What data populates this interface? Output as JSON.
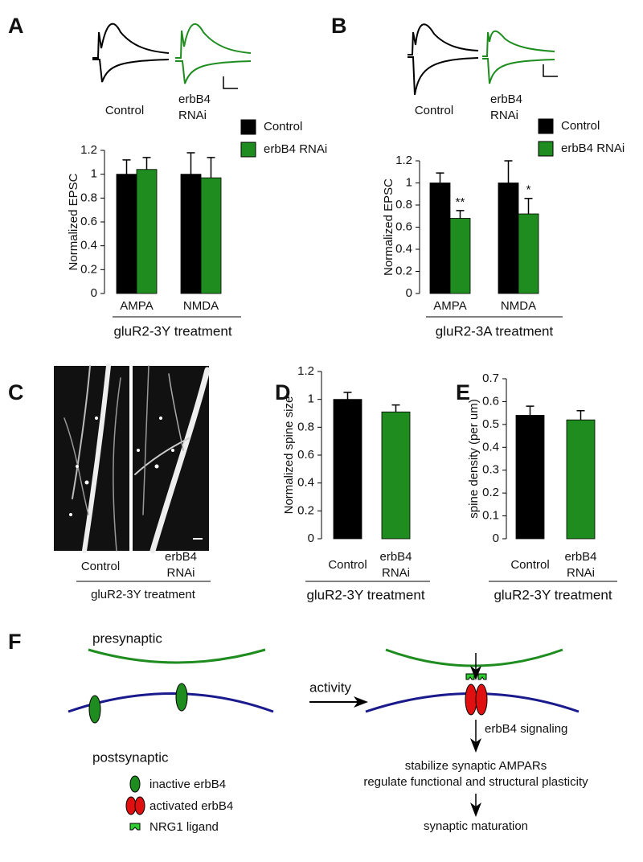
{
  "panel_labels": [
    "A",
    "B",
    "C",
    "D",
    "E",
    "F"
  ],
  "traces": [
    {
      "labels": [
        "Control",
        "erbB4 RNAi"
      ]
    },
    {
      "labels": [
        "Control",
        "erbB4 RNAi"
      ]
    }
  ],
  "chart_data": [
    {
      "type": "bar",
      "ylabel": "Normalized EPSC",
      "xlabel": "gluR2-3Y treatment",
      "categories": [
        "AMPA",
        "NMDA"
      ],
      "series": [
        {
          "name": "Control",
          "color": "#000000",
          "values": [
            1.0,
            1.0
          ],
          "errors": [
            0.12,
            0.18
          ]
        },
        {
          "name": "erbB4 RNAi",
          "color": "#1e8c1e",
          "values": [
            1.04,
            0.97
          ],
          "errors": [
            0.1,
            0.17
          ]
        }
      ],
      "ylim": [
        0,
        1.2
      ],
      "yticks": [
        0,
        0.2,
        0.4,
        0.6,
        0.8,
        1,
        1.2
      ],
      "legend": true
    },
    {
      "type": "bar",
      "ylabel": "Normalized EPSC",
      "xlabel": "gluR2-3A treatment",
      "categories": [
        "AMPA",
        "NMDA"
      ],
      "series": [
        {
          "name": "Control",
          "color": "#000000",
          "values": [
            1.0,
            1.0
          ],
          "errors": [
            0.09,
            0.2
          ]
        },
        {
          "name": "erbB4 RNAi",
          "color": "#1e8c1e",
          "values": [
            0.68,
            0.72
          ],
          "errors": [
            0.07,
            0.14
          ],
          "significance": [
            "**",
            "*"
          ]
        }
      ],
      "ylim": [
        0,
        1.2
      ],
      "yticks": [
        0,
        0.2,
        0.4,
        0.6,
        0.8,
        1,
        1.2
      ],
      "legend": true
    },
    {
      "type": "bar",
      "ylabel": "Normalized spine size",
      "xlabel": "gluR2-3Y treatment",
      "categories": [
        "Control",
        "erbB4 RNAi"
      ],
      "series": [
        {
          "colors": [
            "#000000",
            "#1e8c1e"
          ],
          "values": [
            1.0,
            0.91
          ],
          "errors": [
            0.05,
            0.05
          ]
        }
      ],
      "ylim": [
        0,
        1.2
      ],
      "yticks": [
        0,
        0.2,
        0.4,
        0.6,
        0.8,
        1,
        1.2
      ],
      "legend": false
    },
    {
      "type": "bar",
      "ylabel": "spine density (per um)",
      "xlabel": "gluR2-3Y treatment",
      "categories": [
        "Control",
        "erbB4 RNAi"
      ],
      "series": [
        {
          "colors": [
            "#000000",
            "#1e8c1e"
          ],
          "values": [
            0.54,
            0.52
          ],
          "errors": [
            0.04,
            0.04
          ]
        }
      ],
      "ylim": [
        0,
        0.7
      ],
      "yticks": [
        0,
        0.1,
        0.2,
        0.3,
        0.4,
        0.5,
        0.6,
        0.7
      ],
      "legend": false
    }
  ],
  "image": {
    "labels": [
      "Control",
      "erbB4 RNAi"
    ],
    "treatment": "gluR2-3Y treatment"
  },
  "diagram": {
    "presynaptic": "presynaptic",
    "postsynaptic": "postsynaptic",
    "activity": "activity",
    "signaling": "erbB4 signaling",
    "effects": [
      "stabilize synaptic AMPARs",
      "regulate functional and structural plasticity"
    ],
    "outcome": "synaptic maturation",
    "legend": [
      "inactive erbB4",
      "activated erbB4",
      "NRG1 ligand"
    ]
  }
}
